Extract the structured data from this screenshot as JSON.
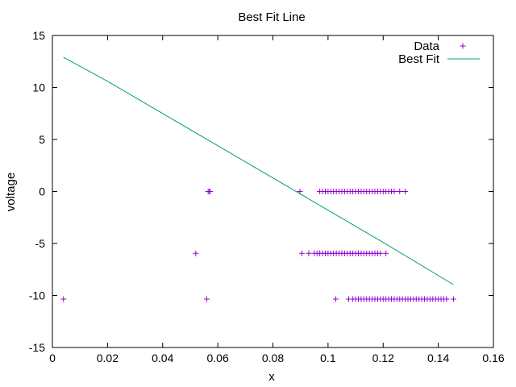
{
  "chart_data": {
    "type": "scatter",
    "title": "Best Fit Line",
    "xlabel": "x",
    "ylabel": "voltage",
    "xlim": [
      0,
      0.16
    ],
    "ylim": [
      -15,
      15
    ],
    "x_ticks": [
      0,
      0.02,
      0.04,
      0.06,
      0.08,
      0.1,
      0.12,
      0.14,
      0.16
    ],
    "x_tick_labels": [
      "0",
      "0.02",
      "0.04",
      "0.06",
      "0.08",
      "0.1",
      "0.12",
      "0.14",
      "0.16"
    ],
    "y_ticks": [
      -15,
      -10,
      -5,
      0,
      5,
      10,
      15
    ],
    "y_tick_labels": [
      "-15",
      "-10",
      "-5",
      "0",
      "5",
      "10",
      "15"
    ],
    "grid": false,
    "legend_position": "top-right",
    "colors": {
      "data": "#9400d3",
      "fit": "#009e73",
      "axis": "#000000"
    },
    "series": [
      {
        "name": "Data",
        "kind": "points",
        "marker": "plus",
        "x": [
          0.004,
          0.052,
          0.056,
          0.0565,
          0.057,
          0.0572,
          0.0898,
          0.0905,
          0.1028,
          0.097,
          0.098,
          0.099,
          0.1,
          0.101,
          0.102,
          0.103,
          0.104,
          0.105,
          0.106,
          0.107,
          0.108,
          0.109,
          0.11,
          0.111,
          0.112,
          0.113,
          0.114,
          0.115,
          0.116,
          0.117,
          0.118,
          0.119,
          0.12,
          0.121,
          0.122,
          0.123,
          0.124,
          0.126,
          0.128,
          0.093,
          0.095,
          0.096,
          0.097,
          0.098,
          0.099,
          0.1,
          0.101,
          0.102,
          0.103,
          0.104,
          0.105,
          0.106,
          0.107,
          0.108,
          0.109,
          0.11,
          0.111,
          0.112,
          0.113,
          0.114,
          0.115,
          0.116,
          0.117,
          0.118,
          0.119,
          0.121,
          0.1075,
          0.109,
          0.11,
          0.111,
          0.112,
          0.113,
          0.114,
          0.115,
          0.116,
          0.117,
          0.118,
          0.119,
          0.12,
          0.121,
          0.122,
          0.123,
          0.124,
          0.125,
          0.126,
          0.127,
          0.128,
          0.129,
          0.13,
          0.131,
          0.132,
          0.133,
          0.134,
          0.135,
          0.136,
          0.137,
          0.138,
          0.139,
          0.14,
          0.141,
          0.142,
          0.143,
          0.1455
        ],
        "y": [
          -10.35,
          -5.95,
          -10.35,
          0,
          0,
          0,
          0,
          -5.95,
          -10.35,
          0,
          0,
          0,
          0,
          0,
          0,
          0,
          0,
          0,
          0,
          0,
          0,
          0,
          0,
          0,
          0,
          0,
          0,
          0,
          0,
          0,
          0,
          0,
          0,
          0,
          0,
          0,
          0,
          0,
          0,
          -5.95,
          -5.95,
          -5.95,
          -5.95,
          -5.95,
          -5.95,
          -5.95,
          -5.95,
          -5.95,
          -5.95,
          -5.95,
          -5.95,
          -5.95,
          -5.95,
          -5.95,
          -5.95,
          -5.95,
          -5.95,
          -5.95,
          -5.95,
          -5.95,
          -5.95,
          -5.95,
          -5.95,
          -5.95,
          -5.95,
          -5.95,
          -10.35,
          -10.35,
          -10.35,
          -10.35,
          -10.35,
          -10.35,
          -10.35,
          -10.35,
          -10.35,
          -10.35,
          -10.35,
          -10.35,
          -10.35,
          -10.35,
          -10.35,
          -10.35,
          -10.35,
          -10.35,
          -10.35,
          -10.35,
          -10.35,
          -10.35,
          -10.35,
          -10.35,
          -10.35,
          -10.35,
          -10.35,
          -10.35,
          -10.35,
          -10.35,
          -10.35,
          -10.35,
          -10.35,
          -10.35,
          -10.35,
          -10.35,
          -10.35
        ]
      },
      {
        "name": "Best Fit",
        "kind": "line",
        "x": [
          0.004,
          0.02,
          0.04,
          0.06,
          0.08,
          0.1,
          0.12,
          0.1455
        ],
        "y": [
          12.9,
          10.6,
          7.5,
          4.4,
          1.3,
          -1.8,
          -4.9,
          -8.95
        ]
      }
    ]
  }
}
